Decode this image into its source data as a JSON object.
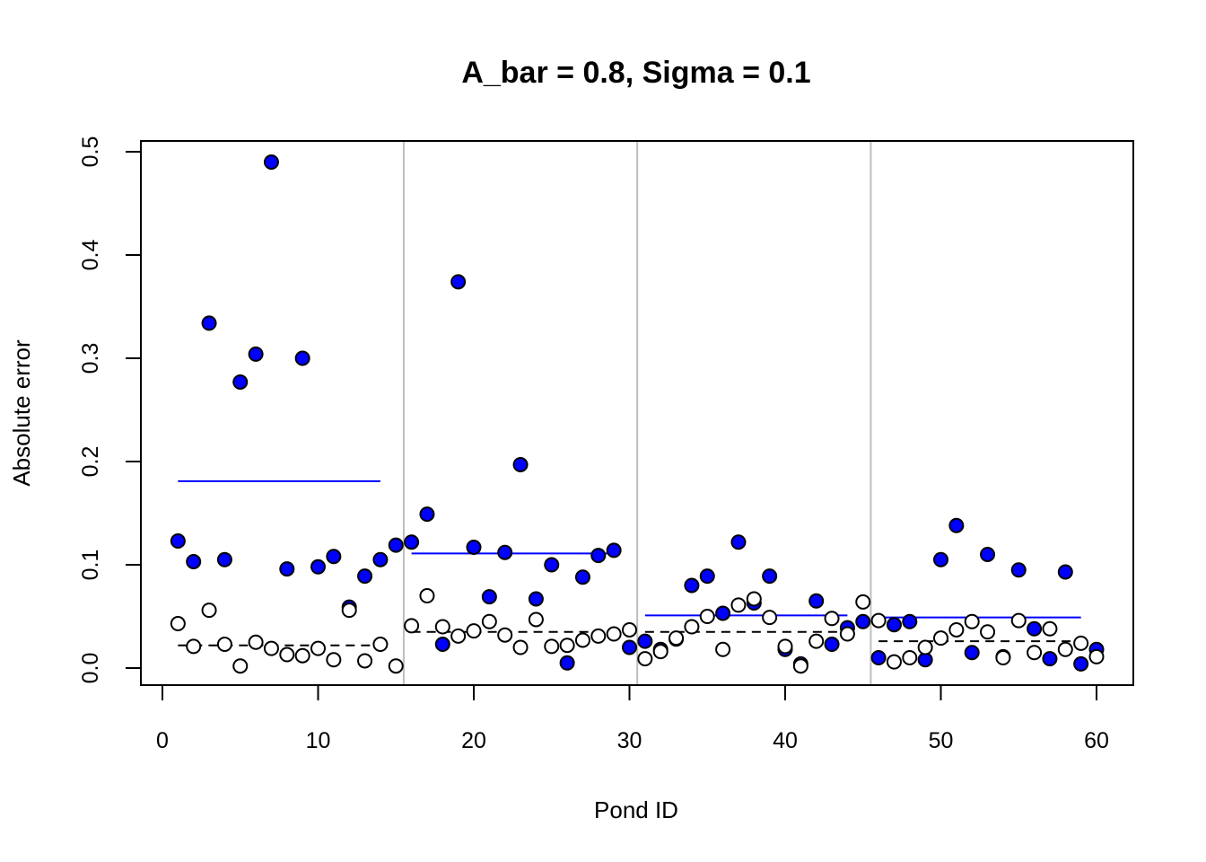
{
  "chart_data": {
    "type": "scatter",
    "title": "A_bar = 0.8, Sigma = 0.1",
    "xlabel": "Pond ID",
    "ylabel": "Absolute error",
    "xlim": [
      0,
      60
    ],
    "ylim": [
      0,
      0.5
    ],
    "x_ticks": [
      "0",
      "10",
      "20",
      "30",
      "40",
      "50",
      "60"
    ],
    "y_ticks": [
      "0.0",
      "0.1",
      "0.2",
      "0.3",
      "0.4",
      "0.5"
    ],
    "group_dividers": [
      15.5,
      30.5,
      45.5
    ],
    "colors": {
      "filled": "#0000ff",
      "open": "#ffffff",
      "outline": "#000000",
      "mean_filled": "#0000ff",
      "mean_open": "#000000",
      "divider": "#bebebe"
    },
    "series": [
      {
        "style": "filled-blue",
        "x": [
          1,
          2,
          3,
          4,
          5,
          6,
          7,
          8,
          9,
          10,
          11,
          12,
          13,
          14,
          15,
          16,
          17,
          18,
          19,
          20,
          21,
          22,
          23,
          24,
          25,
          26,
          27,
          28,
          29,
          30,
          31,
          32,
          33,
          34,
          35,
          36,
          37,
          38,
          39,
          40,
          41,
          42,
          43,
          44,
          45,
          46,
          47,
          48,
          49,
          50,
          51,
          52,
          53,
          54,
          55,
          56,
          57,
          58,
          59,
          60
        ],
        "y": [
          0.123,
          0.103,
          0.334,
          0.105,
          0.277,
          0.304,
          0.49,
          0.096,
          0.3,
          0.098,
          0.108,
          0.059,
          0.089,
          0.105,
          0.119,
          0.122,
          0.149,
          0.023,
          0.374,
          0.117,
          0.069,
          0.112,
          0.197,
          0.067,
          0.1,
          0.005,
          0.088,
          0.109,
          0.114,
          0.02,
          0.026,
          0.018,
          0.028,
          0.08,
          0.089,
          0.053,
          0.122,
          0.063,
          0.089,
          0.018,
          0.004,
          0.065,
          0.023,
          0.039,
          0.045,
          0.01,
          0.042,
          0.045,
          0.008,
          0.105,
          0.138,
          0.015,
          0.11,
          0.011,
          0.095,
          0.038,
          0.009,
          0.093,
          0.004,
          0.018
        ]
      },
      {
        "style": "open",
        "x": [
          1,
          2,
          3,
          4,
          5,
          6,
          7,
          8,
          9,
          10,
          11,
          12,
          13,
          14,
          15,
          16,
          17,
          18,
          19,
          20,
          21,
          22,
          23,
          24,
          25,
          26,
          27,
          28,
          29,
          30,
          31,
          32,
          33,
          34,
          35,
          36,
          37,
          38,
          39,
          40,
          41,
          42,
          43,
          44,
          45,
          46,
          47,
          48,
          49,
          50,
          51,
          52,
          53,
          54,
          55,
          56,
          57,
          58,
          59,
          60
        ],
        "y": [
          0.043,
          0.021,
          0.056,
          0.023,
          0.002,
          0.025,
          0.019,
          0.013,
          0.012,
          0.019,
          0.008,
          0.056,
          0.007,
          0.023,
          0.002,
          0.041,
          0.07,
          0.04,
          0.031,
          0.036,
          0.045,
          0.032,
          0.02,
          0.047,
          0.021,
          0.022,
          0.027,
          0.031,
          0.033,
          0.037,
          0.009,
          0.016,
          0.029,
          0.04,
          0.05,
          0.018,
          0.061,
          0.067,
          0.049,
          0.021,
          0.002,
          0.026,
          0.048,
          0.033,
          0.064,
          0.046,
          0.006,
          0.01,
          0.02,
          0.029,
          0.037,
          0.045,
          0.035,
          0.01,
          0.046,
          0.015,
          0.038,
          0.018,
          0.024,
          0.011
        ]
      }
    ],
    "mean_lines": [
      {
        "style": "solid-blue",
        "segments": [
          {
            "x": [
              1,
              14
            ],
            "y": 0.181
          },
          {
            "x": [
              16,
              29
            ],
            "y": 0.111
          },
          {
            "x": [
              31,
              44
            ],
            "y": 0.051
          },
          {
            "x": [
              46,
              59
            ],
            "y": 0.049
          }
        ]
      },
      {
        "style": "dashed-black",
        "segments": [
          {
            "x": [
              1,
              14
            ],
            "y": 0.022
          },
          {
            "x": [
              16,
              29
            ],
            "y": 0.035
          },
          {
            "x": [
              31,
              44
            ],
            "y": 0.035
          },
          {
            "x": [
              46,
              59
            ],
            "y": 0.026
          }
        ]
      }
    ]
  }
}
